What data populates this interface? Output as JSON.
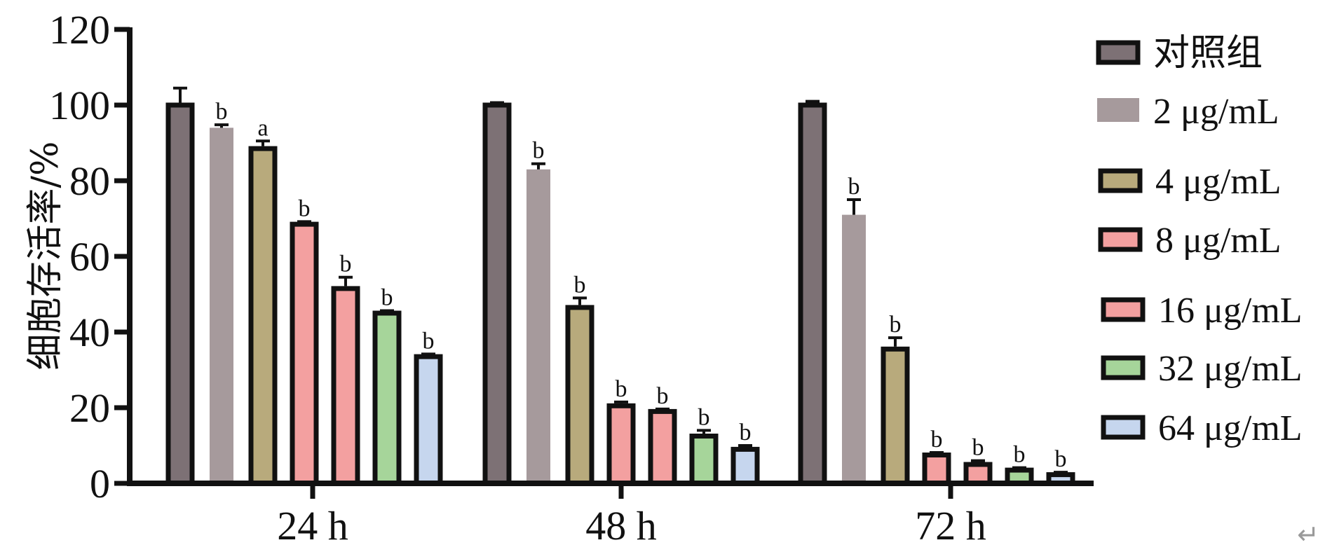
{
  "chart_data": {
    "type": "bar",
    "ylabel": "细胞存活率/%",
    "xlabel": "",
    "ylim": [
      0,
      120
    ],
    "yticks": [
      0,
      20,
      40,
      60,
      80,
      100,
      120
    ],
    "categories": [
      "24 h",
      "48 h",
      "72 h"
    ],
    "legend_position": "right",
    "series": [
      {
        "name": "对照组",
        "color": "#7d7175",
        "outlined": true,
        "values": [
          100,
          100,
          100
        ],
        "errors": [
          4.5,
          0.5,
          1.0
        ],
        "sig": [
          "",
          "",
          ""
        ]
      },
      {
        "name": "2 μg/mL",
        "color": "#a69a9c",
        "outlined": false,
        "values": [
          94,
          83,
          71
        ],
        "errors": [
          0.8,
          1.5,
          4.0
        ],
        "sig": [
          "b",
          "b",
          "b"
        ]
      },
      {
        "name": "4 μg/mL",
        "color": "#b8aa7c",
        "outlined": true,
        "values": [
          88.5,
          46.5,
          35.5
        ],
        "errors": [
          2.0,
          2.5,
          3.0
        ],
        "sig": [
          "a",
          "b",
          "b"
        ]
      },
      {
        "name": "8 μg/mL",
        "color": "#f3a0a0",
        "outlined": true,
        "values": [
          68.5,
          20.5,
          7.5
        ],
        "errors": [
          0.7,
          1.0,
          0.5
        ],
        "sig": [
          "b",
          "b",
          "b"
        ]
      },
      {
        "name": "16 μg/mL",
        "color": "#f3a0a0",
        "outlined": true,
        "values": [
          51.5,
          19.0,
          5.0
        ],
        "errors": [
          3.0,
          0.5,
          1.0
        ],
        "sig": [
          "b",
          "b",
          "b"
        ]
      },
      {
        "name": "32 μg/mL",
        "color": "#a6d59a",
        "outlined": true,
        "values": [
          45,
          12.5,
          3.5
        ],
        "errors": [
          0.5,
          1.5,
          0.3
        ],
        "sig": [
          "b",
          "b",
          "b"
        ]
      },
      {
        "name": "64 μg/mL",
        "color": "#c6d6ee",
        "outlined": true,
        "values": [
          33.5,
          9.0,
          2.3
        ],
        "errors": [
          0.7,
          1.0,
          0.3
        ],
        "sig": [
          "b",
          "b",
          "b"
        ]
      }
    ]
  },
  "decor": {
    "return_mark": "↵"
  }
}
